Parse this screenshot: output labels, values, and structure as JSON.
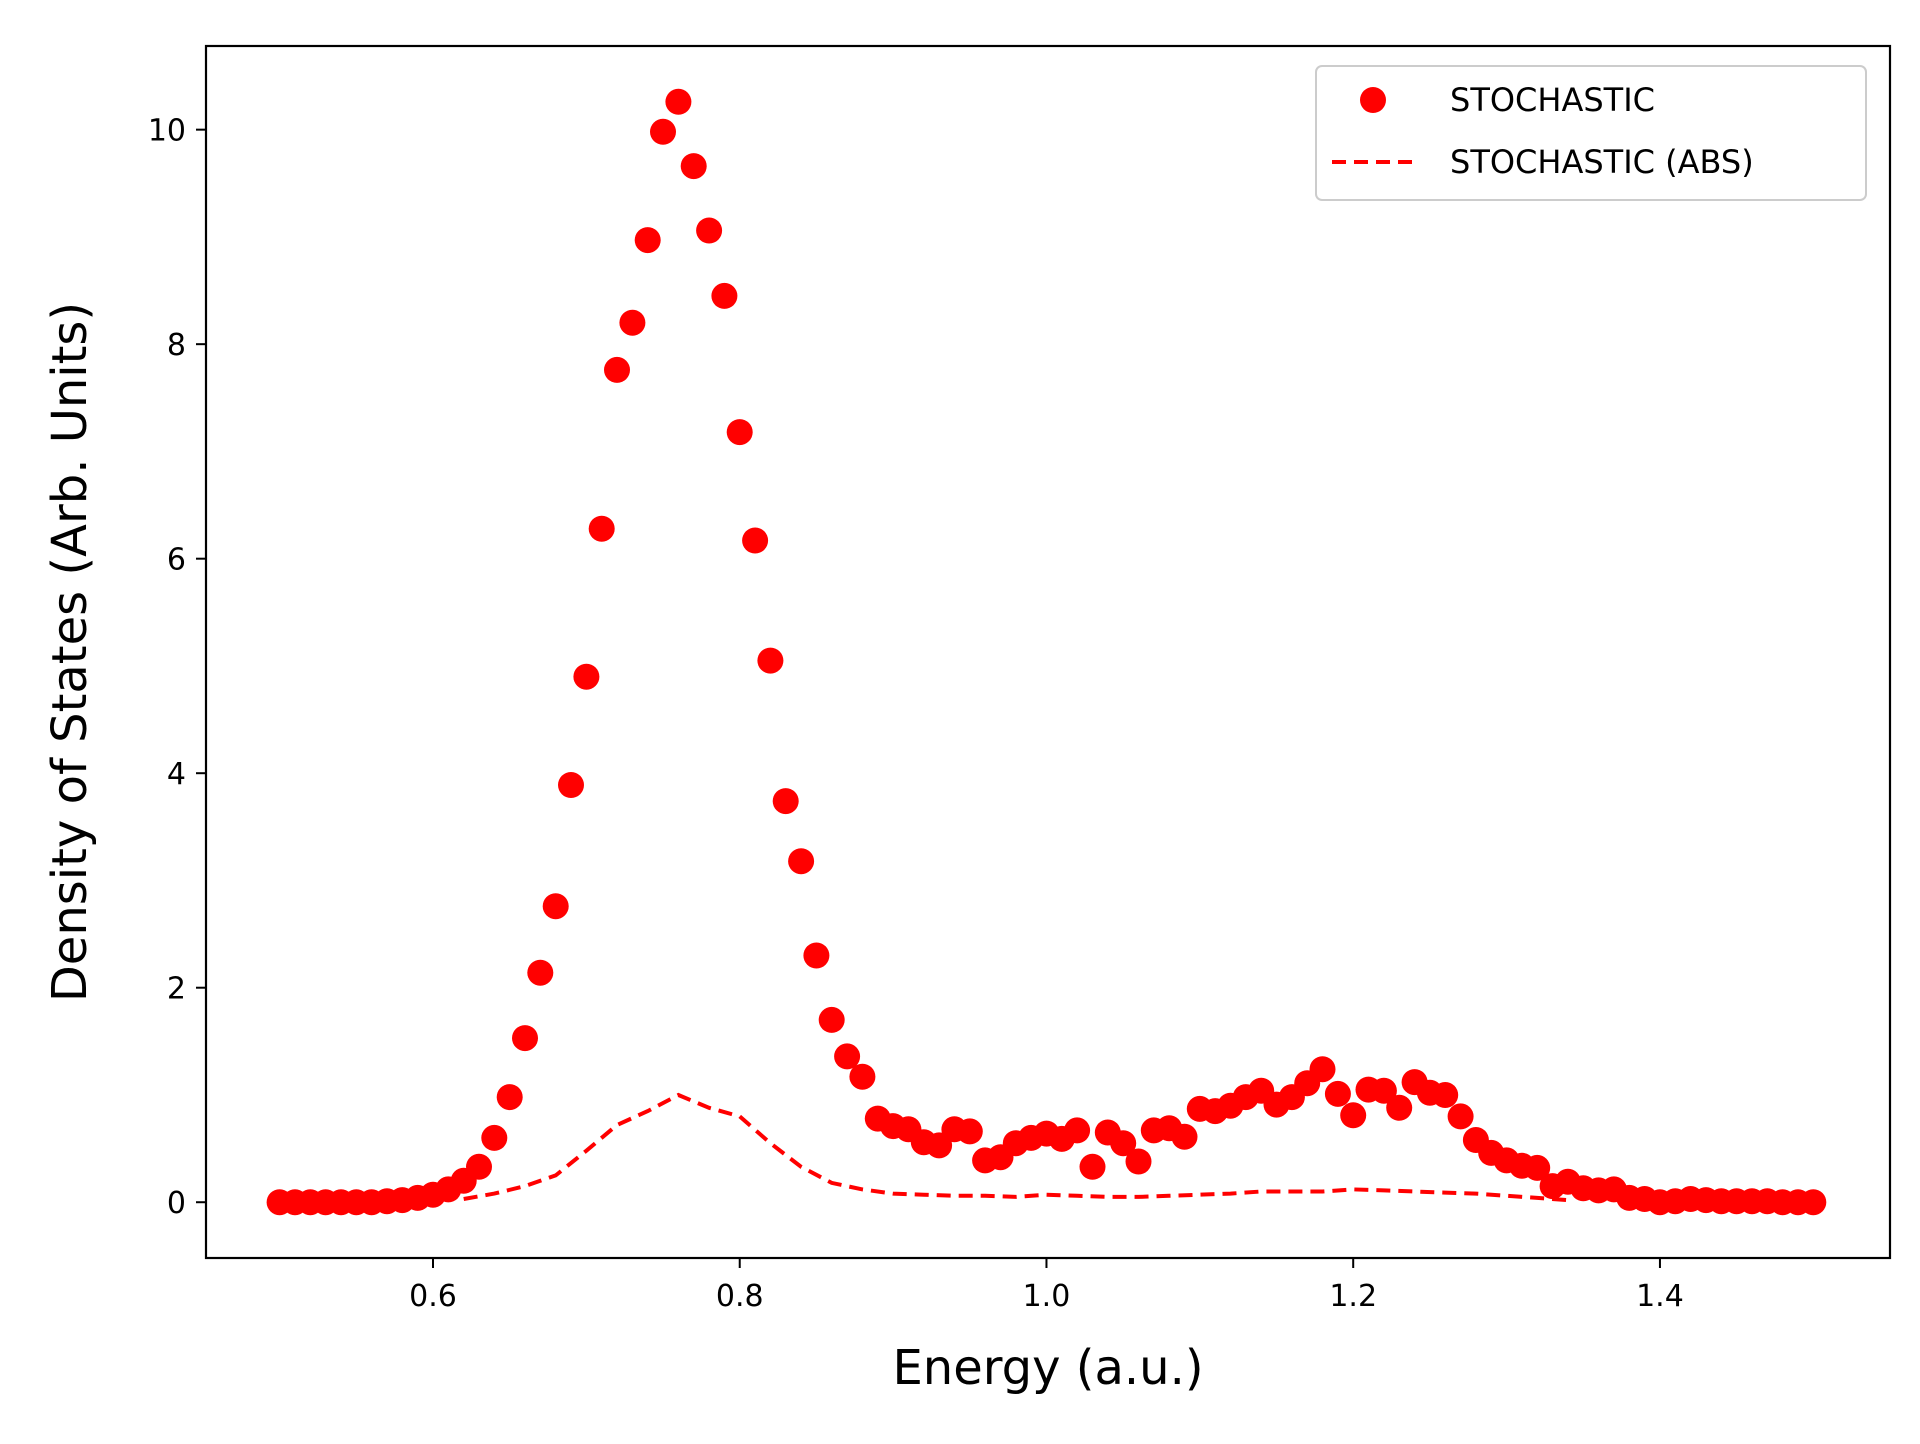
{
  "chart_data": {
    "type": "scatter",
    "xlabel": "Energy (a.u.)",
    "ylabel": "Density of States (Arb. Units)",
    "xlim": [
      0.452,
      1.55
    ],
    "ylim": [
      -0.52,
      10.78
    ],
    "x_ticks": [
      0.6,
      0.8,
      1.0,
      1.2,
      1.4
    ],
    "x_tick_labels": [
      "0.6",
      "0.8",
      "1.0",
      "1.2",
      "1.4"
    ],
    "y_ticks": [
      0,
      2,
      4,
      6,
      8,
      10
    ],
    "y_tick_labels": [
      "0",
      "2",
      "4",
      "6",
      "8",
      "10"
    ],
    "grid": false,
    "legend_position": "top-right",
    "color": "#ff0000",
    "series": [
      {
        "name": "STOCHASTIC",
        "style": "markers",
        "x": [
          0.5,
          0.51,
          0.52,
          0.53,
          0.54,
          0.55,
          0.56,
          0.57,
          0.58,
          0.59,
          0.6,
          0.61,
          0.62,
          0.63,
          0.64,
          0.65,
          0.66,
          0.67,
          0.68,
          0.69,
          0.7,
          0.71,
          0.72,
          0.73,
          0.74,
          0.75,
          0.76,
          0.77,
          0.78,
          0.79,
          0.8,
          0.81,
          0.82,
          0.83,
          0.84,
          0.85,
          0.86,
          0.87,
          0.88,
          0.89,
          0.9,
          0.91,
          0.92,
          0.93,
          0.94,
          0.95,
          0.96,
          0.97,
          0.98,
          0.99,
          1.0,
          1.01,
          1.02,
          1.03,
          1.04,
          1.05,
          1.06,
          1.07,
          1.08,
          1.09,
          1.1,
          1.11,
          1.12,
          1.13,
          1.14,
          1.15,
          1.16,
          1.17,
          1.18,
          1.19,
          1.2,
          1.21,
          1.22,
          1.23,
          1.24,
          1.25,
          1.26,
          1.27,
          1.28,
          1.29,
          1.3,
          1.31,
          1.32,
          1.33,
          1.34,
          1.35,
          1.36,
          1.37,
          1.38,
          1.39,
          1.4,
          1.41,
          1.42,
          1.43,
          1.44,
          1.45,
          1.46,
          1.47,
          1.48,
          1.49,
          1.5
        ],
        "y": [
          0.0,
          0.0,
          0.0,
          0.0,
          0.0,
          0.0,
          0.0,
          0.01,
          0.02,
          0.04,
          0.07,
          0.12,
          0.2,
          0.33,
          0.6,
          0.98,
          1.53,
          2.14,
          2.76,
          3.89,
          4.9,
          6.28,
          7.76,
          8.2,
          8.97,
          9.98,
          10.26,
          9.66,
          9.06,
          8.45,
          7.18,
          6.17,
          5.05,
          3.74,
          3.18,
          2.3,
          1.7,
          1.36,
          1.17,
          0.78,
          0.71,
          0.68,
          0.56,
          0.53,
          0.68,
          0.66,
          0.39,
          0.42,
          0.55,
          0.6,
          0.64,
          0.59,
          0.67,
          0.33,
          0.65,
          0.55,
          0.38,
          0.67,
          0.69,
          0.61,
          0.87,
          0.85,
          0.9,
          0.98,
          1.04,
          0.91,
          0.98,
          1.11,
          1.24,
          1.01,
          0.81,
          1.05,
          1.04,
          0.88,
          1.12,
          1.02,
          1.0,
          0.8,
          0.58,
          0.46,
          0.39,
          0.34,
          0.32,
          0.15,
          0.19,
          0.13,
          0.11,
          0.12,
          0.04,
          0.03,
          0.0,
          0.01,
          0.03,
          0.02,
          0.01,
          0.01,
          0.01,
          0.01,
          0.0,
          0.0,
          0.0
        ]
      },
      {
        "name": "STOCHASTIC (ABS)",
        "style": "dashed-line",
        "x": [
          0.62,
          0.64,
          0.66,
          0.68,
          0.7,
          0.72,
          0.74,
          0.76,
          0.78,
          0.8,
          0.82,
          0.84,
          0.86,
          0.88,
          0.9,
          0.92,
          0.94,
          0.96,
          0.98,
          1.0,
          1.02,
          1.04,
          1.06,
          1.08,
          1.1,
          1.12,
          1.14,
          1.16,
          1.18,
          1.2,
          1.22,
          1.24,
          1.26,
          1.28,
          1.3,
          1.32,
          1.34
        ],
        "y": [
          0.03,
          0.08,
          0.15,
          0.25,
          0.48,
          0.72,
          0.85,
          1.0,
          0.88,
          0.8,
          0.55,
          0.33,
          0.18,
          0.12,
          0.08,
          0.07,
          0.06,
          0.06,
          0.05,
          0.07,
          0.06,
          0.05,
          0.05,
          0.06,
          0.07,
          0.08,
          0.1,
          0.1,
          0.1,
          0.12,
          0.11,
          0.1,
          0.09,
          0.08,
          0.06,
          0.04,
          0.02
        ]
      }
    ]
  }
}
